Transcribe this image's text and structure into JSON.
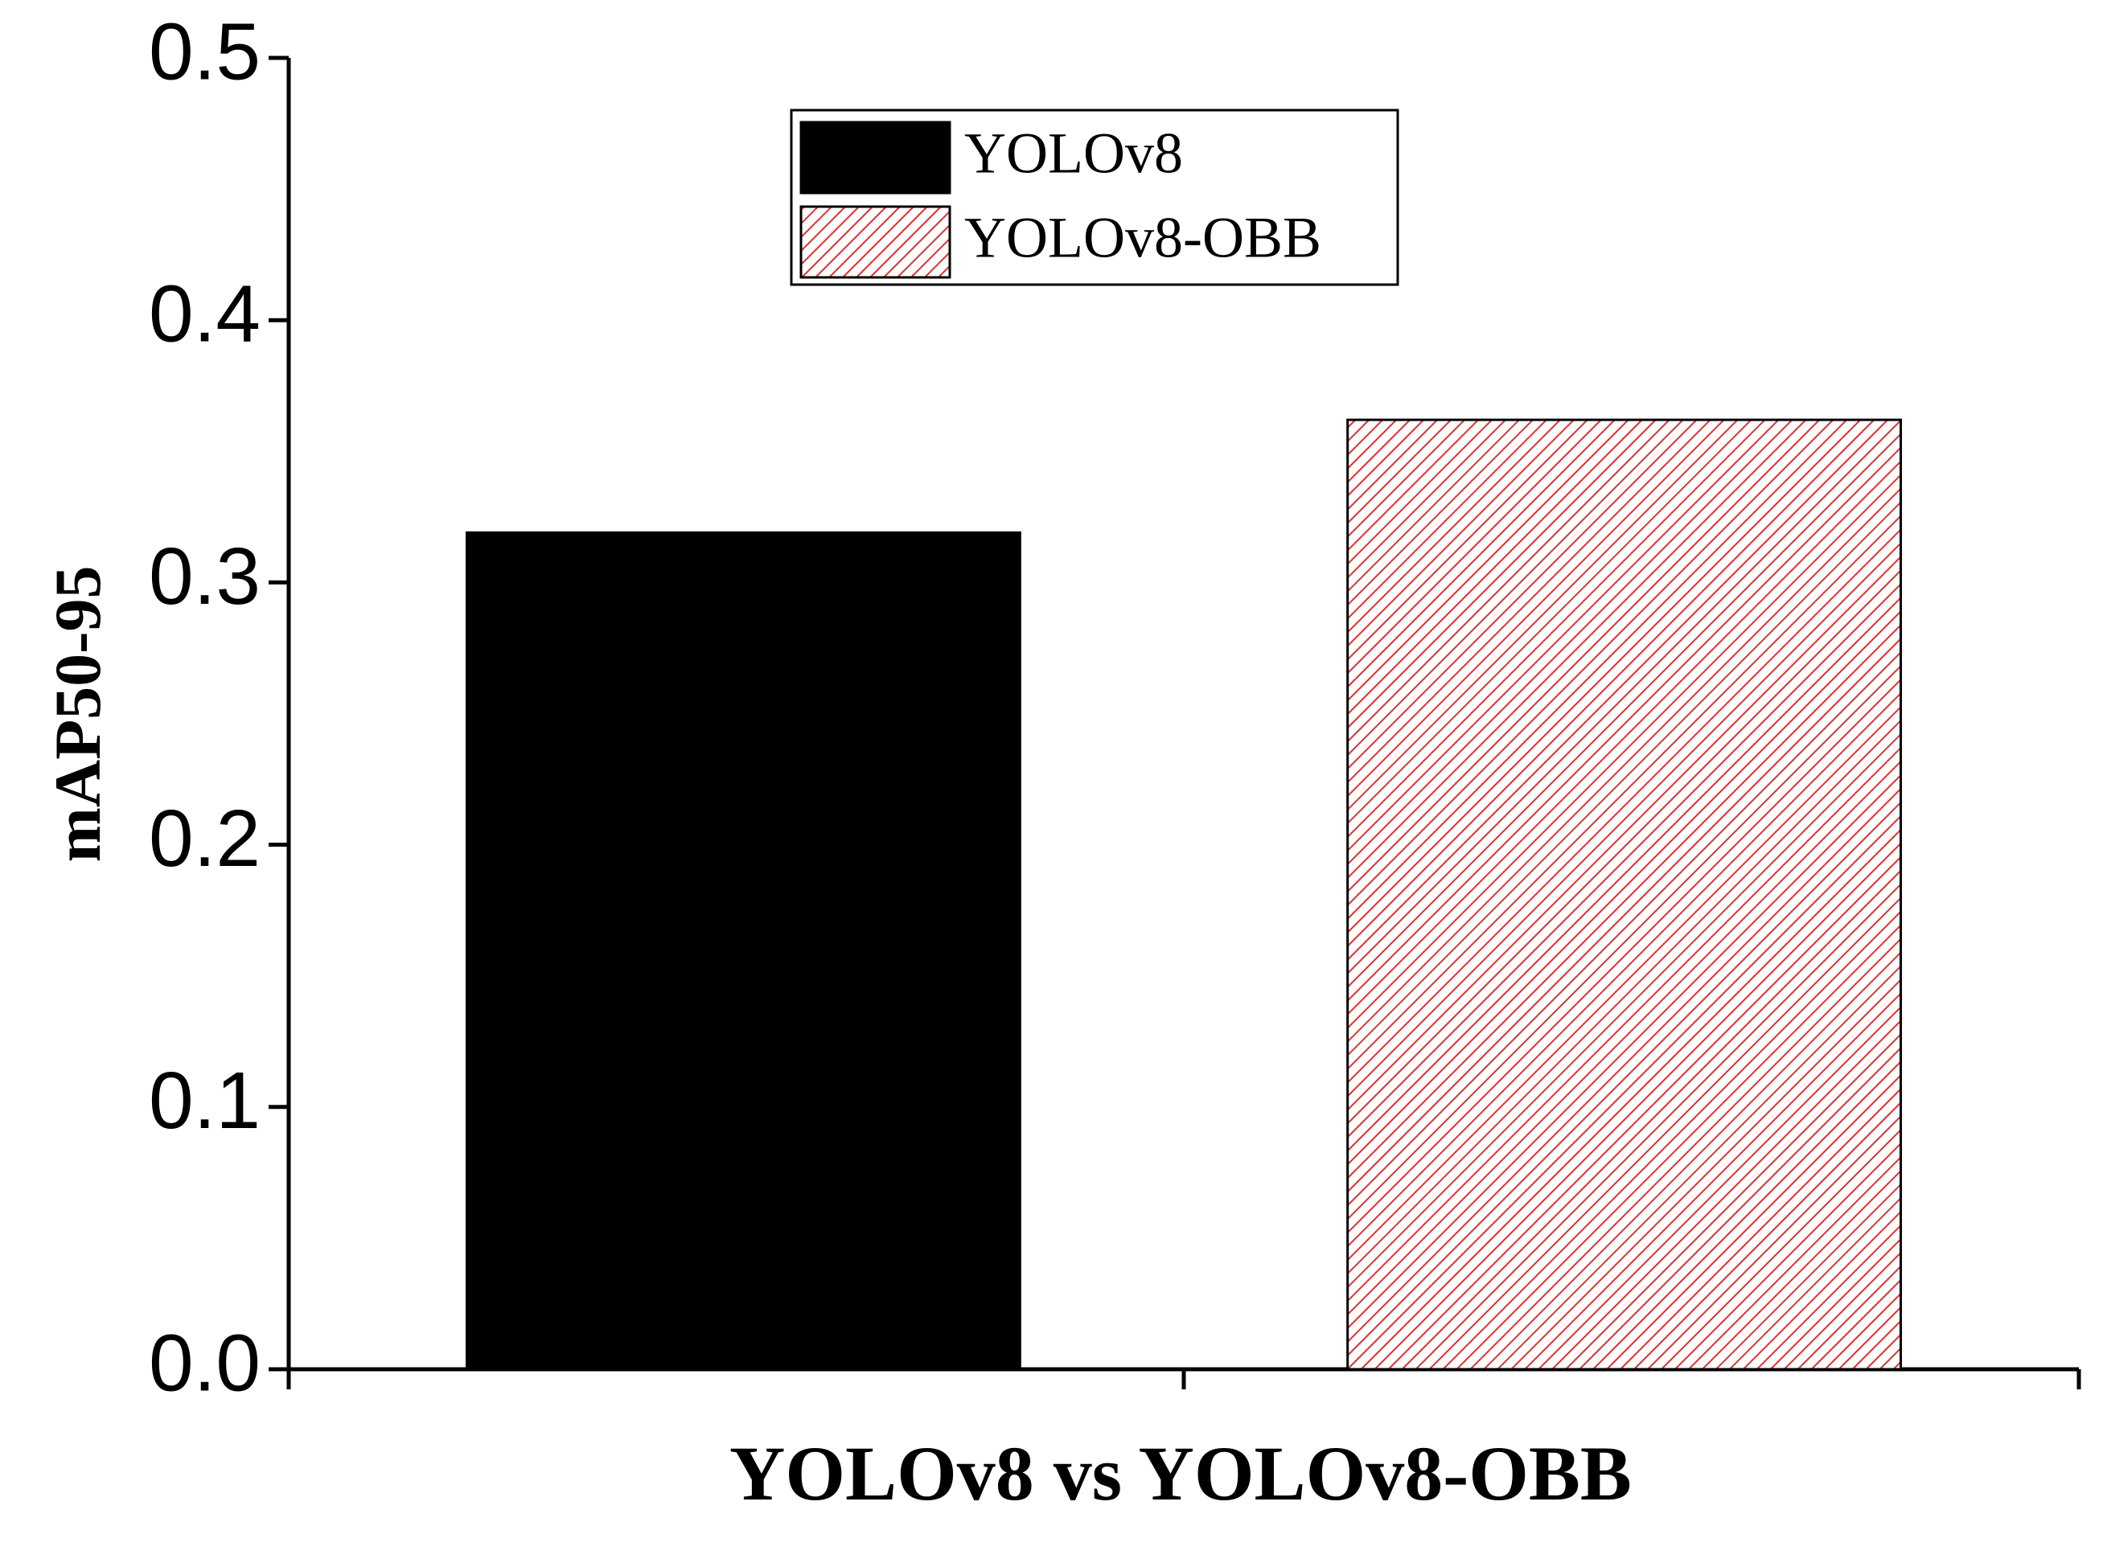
{
  "chart_data": {
    "type": "bar",
    "x_label": "YOLOv8 vs YOLOv8-OBB",
    "y_label": "mAP50-95",
    "categories": [
      null
    ],
    "series": [
      {
        "name": "YOLOv8",
        "color": "#000000",
        "values": [
          0.319
        ]
      },
      {
        "name": "YOLOv8-OBB",
        "color": "#e03030",
        "pattern": "hatch",
        "values": [
          0.362
        ]
      }
    ],
    "ylim": [
      0,
      0.5
    ],
    "yticks": [
      {
        "value": 0,
        "label": "0.0"
      },
      0.1,
      0.2,
      0.3,
      0.4,
      0.5
    ],
    "grid": false,
    "legend": "top-center"
  }
}
